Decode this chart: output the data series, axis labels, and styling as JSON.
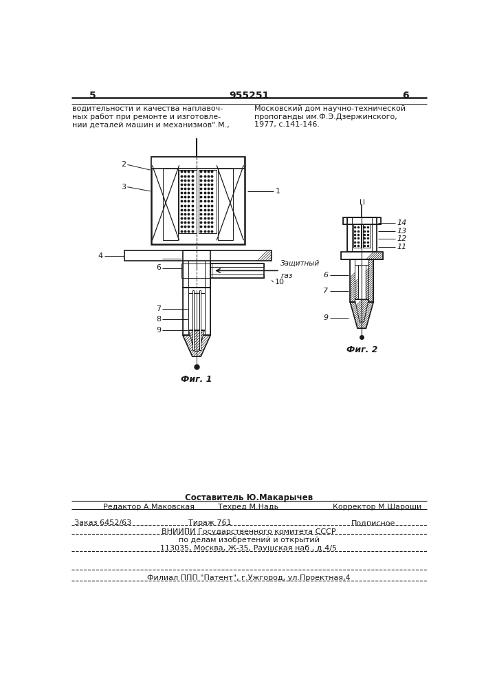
{
  "page_number_left": "5",
  "page_number_center": "955251",
  "page_number_right": "6",
  "top_left_text": [
    "водительности и качества наплавоч-",
    "ных работ при ремонте и изготовле-",
    "нии деталей машин и механизмов\".М.,"
  ],
  "top_right_text": [
    "Московский дом научно-технической",
    "пропоганды им.Ф.Э.Дзержинского,",
    "1977, с.141-146."
  ],
  "fig1_caption": "Фиг. 1",
  "fig2_caption": "Фиг. 2",
  "gas_label_line1": "Защитный",
  "gas_label_line2": "газ",
  "bottom_editor": "Редактор А.Маковская",
  "bottom_techred": "Техред М.Надь",
  "bottom_corrector": "Корректор М.Шароши",
  "bottom_order": "Заказ 6452/63",
  "bottom_tirazh": "Тираж 761",
  "bottom_podpisnoe": "Подписное",
  "bottom_vniipи": "ВНИИПИ Государственного комитета СССР",
  "bottom_vniipи2": "по делам изобретений и открытий",
  "bottom_address": "113035, Москва, Ж-35, Раушская наб., д.4/5",
  "bottom_filial": "Филиал ППП \"Патент\", г.Ужгород, ул.Проектная,4",
  "bottom_sostavitel": "Составитель Ю.Макарычев",
  "bg_color": "#ffffff",
  "line_color": "#1a1a1a"
}
